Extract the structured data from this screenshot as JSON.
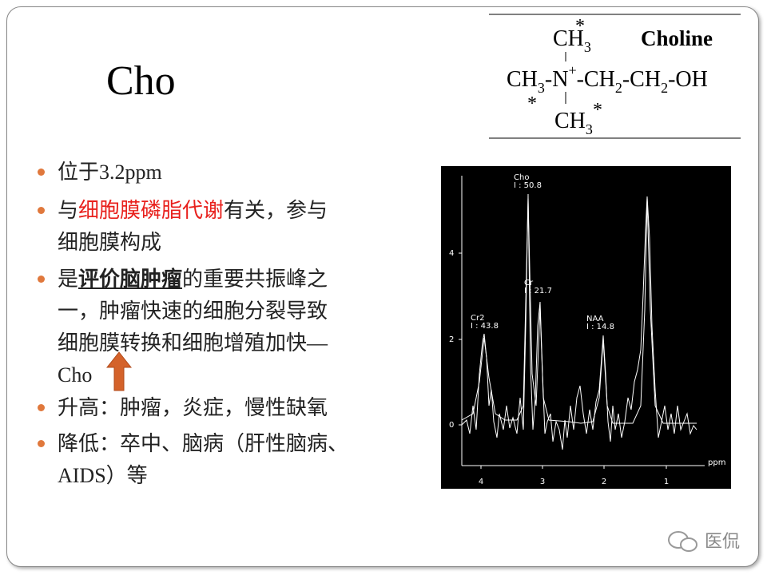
{
  "title": "Cho",
  "structure": {
    "name": "Choline",
    "star": "*",
    "top": [
      "CH",
      "3"
    ],
    "middle": [
      "CH",
      "3",
      "-N",
      "+",
      "-CH",
      "2",
      "-CH",
      "2",
      "-OH"
    ],
    "bottom": [
      "CH",
      "3"
    ]
  },
  "bullets": [
    {
      "lines": [
        [
          {
            "text": "位于3.2ppm"
          }
        ]
      ]
    },
    {
      "lines": [
        [
          {
            "text": "与"
          },
          {
            "text": "细胞膜磷脂代谢",
            "style": "red"
          },
          {
            "text": "有关，参与"
          }
        ],
        [
          {
            "text": "细胞膜构成"
          }
        ]
      ]
    },
    {
      "lines": [
        [
          {
            "text": "是"
          },
          {
            "text": "评价脑肿瘤",
            "style": "bold"
          },
          {
            "text": "的重要共振峰之"
          }
        ],
        [
          {
            "text": "一，肿瘤快速的细胞分裂导致"
          }
        ],
        [
          {
            "text": "细胞膜转换和细胞增殖加快—"
          }
        ],
        [
          {
            "text": "Cho"
          }
        ]
      ]
    },
    {
      "lines": [
        [
          {
            "text": "升高：肿瘤，炎症，慢性缺氧"
          }
        ]
      ]
    },
    {
      "lines": [
        [
          {
            "text": "降低：卒中、脑病（肝性脑病、"
          }
        ],
        [
          {
            "text": "AIDS）等"
          }
        ]
      ]
    }
  ],
  "spectrum": {
    "peaks": [
      {
        "name": "Cho",
        "integral": "I : 50.8"
      },
      {
        "name": "Cr",
        "integral": "I : 21.7"
      },
      {
        "name": "Cr2",
        "integral": "I : 43.8"
      },
      {
        "name": "NAA",
        "integral": "I : 14.8"
      }
    ],
    "yticks": [
      "0",
      "2",
      "4"
    ],
    "xticks": [
      "4",
      "3",
      "2",
      "1"
    ],
    "xlabel": "ppm"
  },
  "watermark": "医侃"
}
